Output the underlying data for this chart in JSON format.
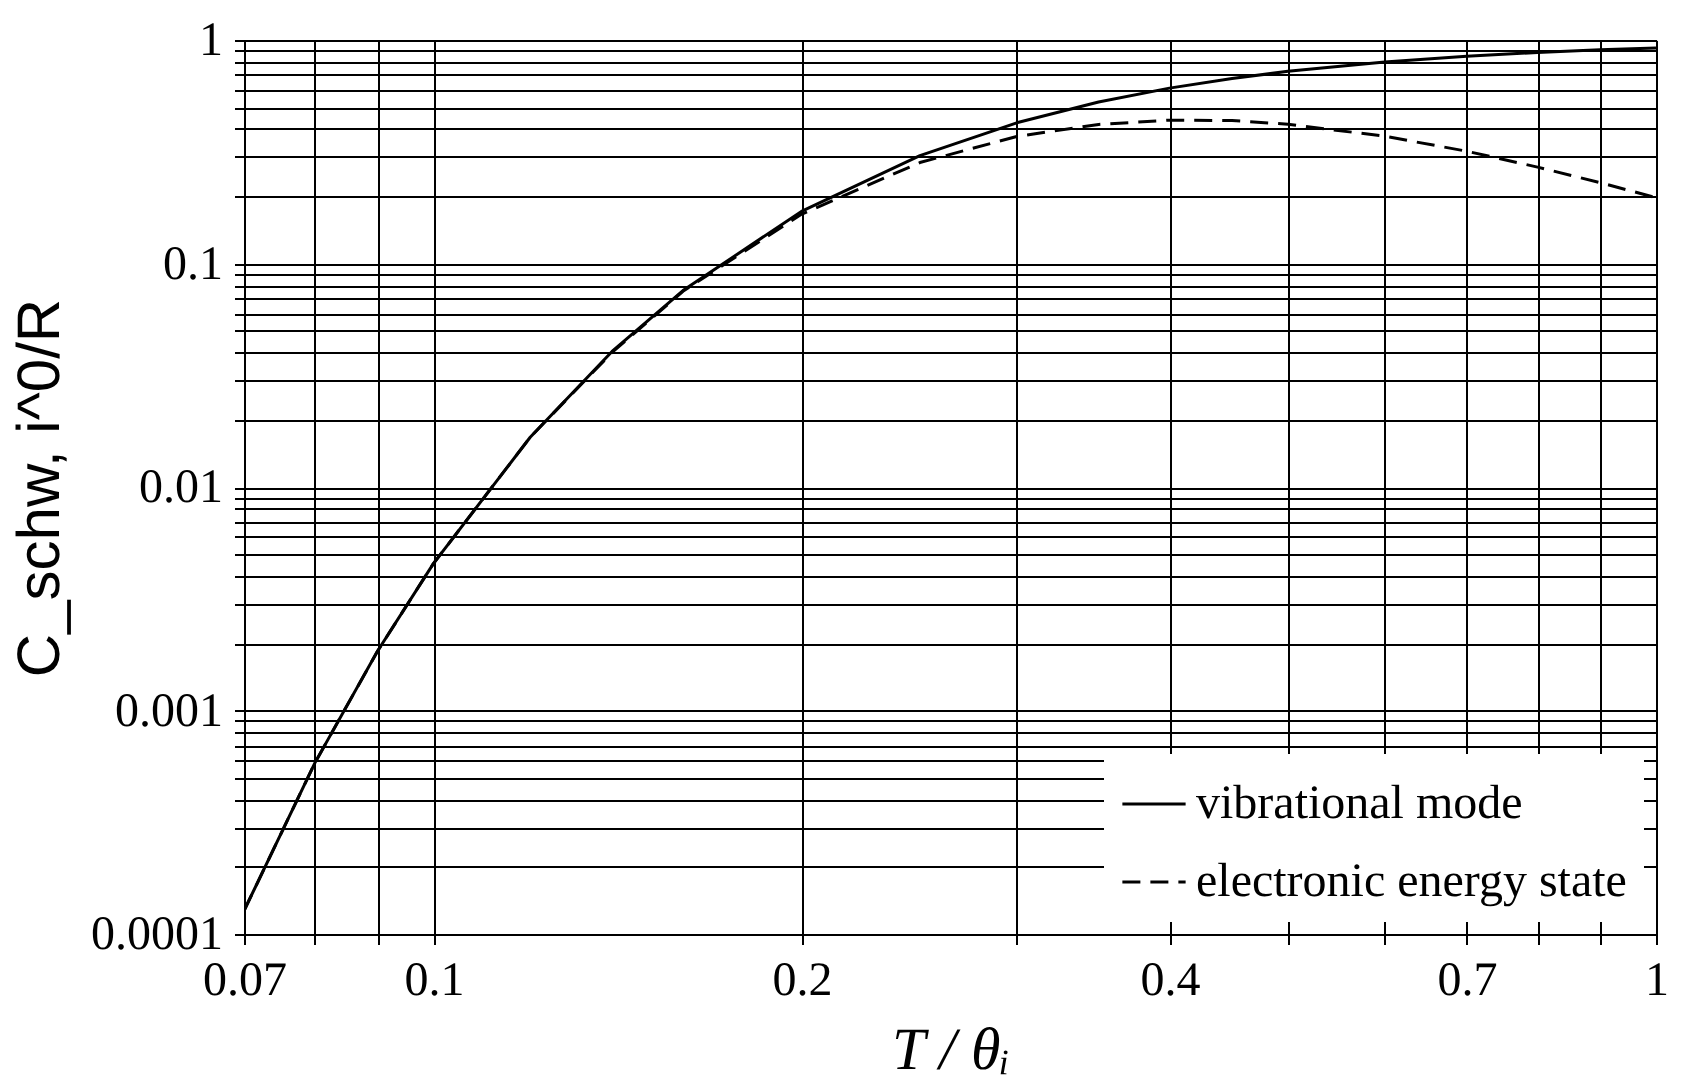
{
  "chart_data": {
    "type": "line",
    "xlabel": "T / θᵢ",
    "ylabel": "C_schw, i^0/R",
    "x": [
      0.07,
      0.08,
      0.09,
      0.1,
      0.12,
      0.14,
      0.16,
      0.2,
      0.25,
      0.3,
      0.35,
      0.4,
      0.45,
      0.5,
      0.6,
      0.7,
      0.8,
      0.9,
      1
    ],
    "series": [
      {
        "name": "vibrational mode",
        "color": "#000000",
        "line_style": "solid",
        "values": [
          0.000127,
          0.000583,
          0.00184,
          0.00454,
          0.0167,
          0.0404,
          0.0757,
          0.171,
          0.304,
          0.426,
          0.528,
          0.609,
          0.673,
          0.724,
          0.798,
          0.846,
          0.879,
          0.904,
          0.921
        ]
      },
      {
        "name": "electronic energy state",
        "color": "#000000",
        "line_style": "dashed",
        "values": [
          0.000127,
          0.000583,
          0.00184,
          0.00454,
          0.0167,
          0.04,
          0.0751,
          0.166,
          0.283,
          0.37,
          0.419,
          0.438,
          0.436,
          0.42,
          0.371,
          0.318,
          0.27,
          0.23,
          0.197
        ]
      }
    ],
    "log": "xy",
    "xlim": [
      0.07,
      1
    ],
    "ylim": [
      0.0001,
      1
    ],
    "xticks": [
      0.07,
      {
        "value": 0.08,
        "label": null
      },
      {
        "value": 0.09,
        "label": null
      },
      0.1,
      0.2,
      {
        "value": 0.3,
        "label": null
      },
      0.4,
      {
        "value": 0.5,
        "label": null
      },
      {
        "value": 0.6,
        "label": null
      },
      0.7,
      {
        "value": 0.8,
        "label": null
      },
      {
        "value": 0.9,
        "label": null
      },
      1
    ],
    "yticks": [
      0.0001,
      {
        "value": 0.0002,
        "label": null
      },
      {
        "value": 0.0003,
        "label": null
      },
      {
        "value": 0.0004,
        "label": null
      },
      {
        "value": 0.0005,
        "label": null
      },
      {
        "value": 0.0006,
        "label": null
      },
      {
        "value": 0.0007,
        "label": null
      },
      {
        "value": 0.0008,
        "label": null
      },
      {
        "value": 0.0009,
        "label": null
      },
      0.001,
      {
        "value": 0.002,
        "label": null
      },
      {
        "value": 0.003,
        "label": null
      },
      {
        "value": 0.004,
        "label": null
      },
      {
        "value": 0.005,
        "label": null
      },
      {
        "value": 0.006,
        "label": null
      },
      {
        "value": 0.007,
        "label": null
      },
      {
        "value": 0.008,
        "label": null
      },
      {
        "value": 0.009,
        "label": null
      },
      0.01,
      {
        "value": 0.02,
        "label": null
      },
      {
        "value": 0.03,
        "label": null
      },
      {
        "value": 0.04,
        "label": null
      },
      {
        "value": 0.05,
        "label": null
      },
      {
        "value": 0.06,
        "label": null
      },
      {
        "value": 0.07,
        "label": null
      },
      {
        "value": 0.08,
        "label": null
      },
      {
        "value": 0.09,
        "label": null
      },
      0.1,
      {
        "value": 0.2,
        "label": null
      },
      {
        "value": 0.3,
        "label": null
      },
      {
        "value": 0.4,
        "label": null
      },
      {
        "value": 0.5,
        "label": null
      },
      {
        "value": 0.6,
        "label": null
      },
      {
        "value": 0.7,
        "label": null
      },
      {
        "value": 0.8,
        "label": null
      },
      {
        "value": 0.9,
        "label": null
      },
      1
    ],
    "grid": true,
    "legend": "bottom right",
    "marker": "none"
  }
}
